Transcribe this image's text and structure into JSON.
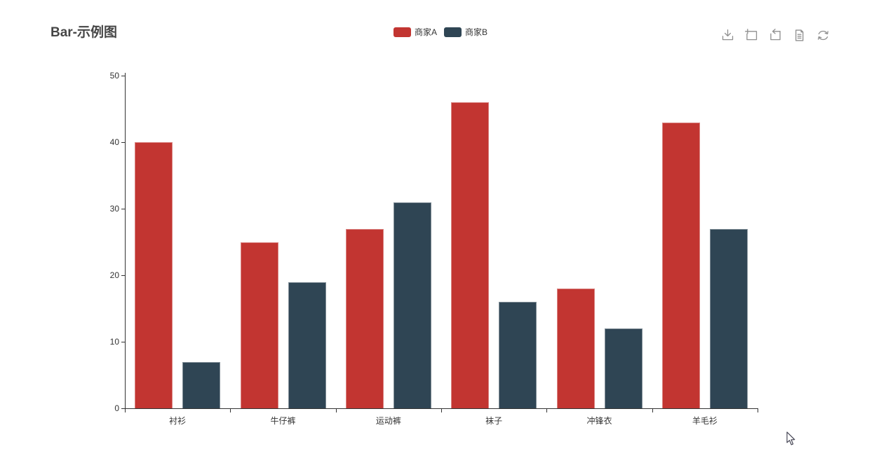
{
  "header": {
    "title": "Bar-示例图"
  },
  "legend": {
    "items": [
      {
        "label": "商家A",
        "color": "#c23531"
      },
      {
        "label": "商家B",
        "color": "#2f4554"
      }
    ]
  },
  "toolbar": {
    "icons": [
      "save-image",
      "data-zoom",
      "zoom-reset",
      "data-view",
      "restore"
    ]
  },
  "chart_data": {
    "type": "bar",
    "title": "Bar-示例图",
    "categories": [
      "衬衫",
      "牛仔裤",
      "运动裤",
      "袜子",
      "冲锋衣",
      "羊毛衫"
    ],
    "series": [
      {
        "name": "商家A",
        "color": "#c23531",
        "values": [
          40,
          25,
          27,
          46,
          18,
          43
        ]
      },
      {
        "name": "商家B",
        "color": "#2f4554",
        "values": [
          7,
          19,
          31,
          16,
          12,
          27
        ]
      }
    ],
    "xlabel": "",
    "ylabel": "",
    "ylim": [
      0,
      50
    ],
    "yticks": [
      0,
      10,
      20,
      30,
      40,
      50
    ],
    "grid": false,
    "legend_position": "top-center"
  },
  "colors": {
    "axis": "#333333",
    "title_text": "#464646",
    "toolbox_icon": "#8f8f8f"
  }
}
